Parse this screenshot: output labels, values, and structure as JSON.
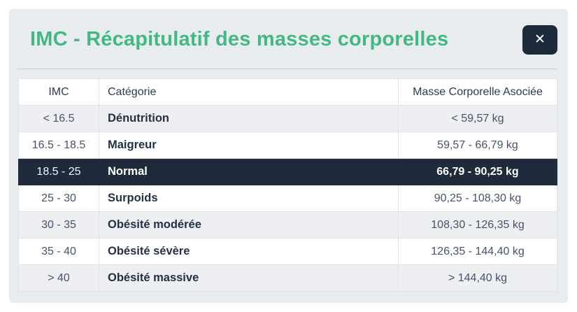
{
  "modal": {
    "title": "IMC - Récapitulatif des masses corporelles",
    "close_icon": "✕"
  },
  "colors": {
    "title_green": "#42b983",
    "modal_background": "#e9ecef",
    "highlight_row_navy": "#1f2b3a",
    "close_button_navy": "#1d2a39"
  },
  "table": {
    "columns": [
      "IMC",
      "Catégorie",
      "Masse Corporelle Asociée"
    ],
    "rows": [
      {
        "imc": "< 16.5",
        "category": "Dénutrition",
        "mass": "< 59,57 kg",
        "highlight": false
      },
      {
        "imc": "16.5 - 18.5",
        "category": "Maigreur",
        "mass": "59,57 - 66,79 kg",
        "highlight": false
      },
      {
        "imc": "18.5 - 25",
        "category": "Normal",
        "mass": "66,79 - 90,25 kg",
        "highlight": true
      },
      {
        "imc": "25 - 30",
        "category": "Surpoids",
        "mass": "90,25 - 108,30 kg",
        "highlight": false
      },
      {
        "imc": "30 - 35",
        "category": "Obésité modérée",
        "mass": "108,30 - 126,35 kg",
        "highlight": false
      },
      {
        "imc": "35 - 40",
        "category": "Obésité sévère",
        "mass": "126,35 - 144,40 kg",
        "highlight": false
      },
      {
        "imc": "> 40",
        "category": "Obésité massive",
        "mass": "> 144,40 kg",
        "highlight": false
      }
    ]
  }
}
